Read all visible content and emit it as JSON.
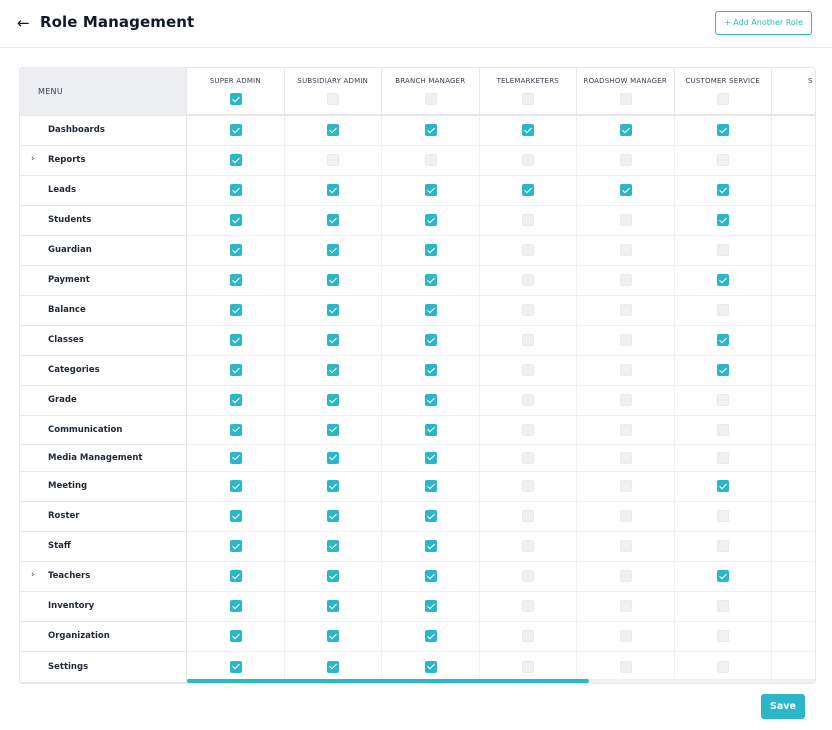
{
  "header": {
    "title": "Role Management",
    "back_icon": "arrow-left-icon",
    "add_role_label": "+ Add Another Role"
  },
  "menu_header": "MENU",
  "roles": [
    {
      "name": "SUPER ADMIN",
      "all_checked": true
    },
    {
      "name": "SUBSIDIARY ADMIN",
      "all_checked": false
    },
    {
      "name": "BRANCH MANAGER",
      "all_checked": false
    },
    {
      "name": "TELEMARKETERS",
      "all_checked": false
    },
    {
      "name": "ROADSHOW MANAGER",
      "all_checked": false
    },
    {
      "name": "CUSTOMER SERVICE",
      "all_checked": false
    },
    {
      "name": "S",
      "all_checked": false
    }
  ],
  "menu_items": [
    {
      "label": "Dashboards",
      "expandable": false,
      "perms": [
        1,
        1,
        1,
        1,
        1,
        1
      ]
    },
    {
      "label": "Reports",
      "expandable": true,
      "perms": [
        1,
        0,
        0,
        0,
        0,
        0
      ]
    },
    {
      "label": "Leads",
      "expandable": false,
      "perms": [
        1,
        1,
        1,
        1,
        1,
        1
      ]
    },
    {
      "label": "Students",
      "expandable": false,
      "perms": [
        1,
        1,
        1,
        0,
        0,
        1
      ]
    },
    {
      "label": "Guardian",
      "expandable": false,
      "perms": [
        1,
        1,
        1,
        0,
        0,
        0
      ]
    },
    {
      "label": "Payment",
      "expandable": false,
      "perms": [
        1,
        1,
        1,
        0,
        0,
        1
      ]
    },
    {
      "label": "Balance",
      "expandable": false,
      "perms": [
        1,
        1,
        1,
        0,
        0,
        0
      ]
    },
    {
      "label": "Classes",
      "expandable": false,
      "perms": [
        1,
        1,
        1,
        0,
        0,
        1
      ]
    },
    {
      "label": "Categories",
      "expandable": false,
      "perms": [
        1,
        1,
        1,
        0,
        0,
        1
      ]
    },
    {
      "label": "Grade",
      "expandable": false,
      "perms": [
        1,
        1,
        1,
        0,
        0,
        0
      ]
    },
    {
      "label": "Communication",
      "expandable": false,
      "perms": [
        1,
        1,
        1,
        0,
        0,
        0
      ]
    },
    {
      "label": "Media Management",
      "expandable": false,
      "perms": [
        1,
        1,
        1,
        0,
        0,
        0
      ]
    },
    {
      "label": "Meeting",
      "expandable": false,
      "perms": [
        1,
        1,
        1,
        0,
        0,
        1
      ]
    },
    {
      "label": "Roster",
      "expandable": false,
      "perms": [
        1,
        1,
        1,
        0,
        0,
        0
      ]
    },
    {
      "label": "Staff",
      "expandable": false,
      "perms": [
        1,
        1,
        1,
        0,
        0,
        0
      ]
    },
    {
      "label": "Teachers",
      "expandable": true,
      "perms": [
        1,
        1,
        1,
        0,
        0,
        1
      ]
    },
    {
      "label": "Inventory",
      "expandable": false,
      "perms": [
        1,
        1,
        1,
        0,
        0,
        0
      ]
    },
    {
      "label": "Organization",
      "expandable": false,
      "perms": [
        1,
        1,
        1,
        0,
        0,
        0
      ]
    },
    {
      "label": "Settings",
      "expandable": false,
      "perms": [
        1,
        1,
        1,
        0,
        0,
        0
      ]
    }
  ],
  "scroll_progress": 0.64,
  "save_label": "Save",
  "colors": {
    "accent": "#2bb7c9",
    "unchecked": "#eef0f2",
    "border": "#e5e7eb"
  }
}
